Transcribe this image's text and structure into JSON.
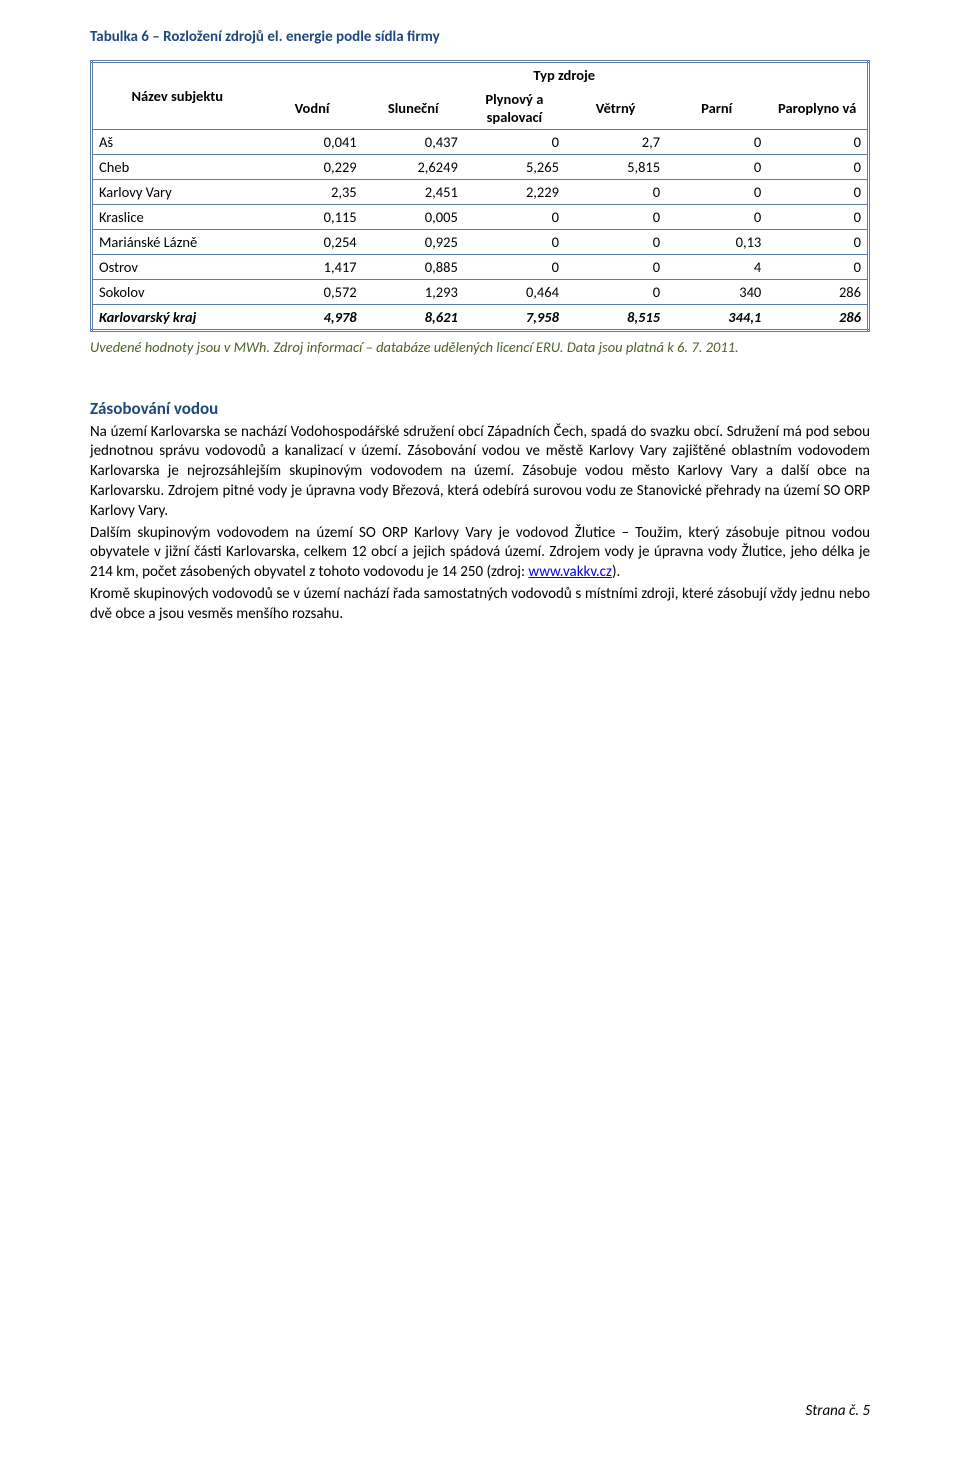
{
  "table": {
    "title": "Tabulka 6 – Rozložení zdrojů el. energie podle sídla firmy",
    "group_header": "Typ zdroje",
    "name_header": "Název subjektu",
    "col_headers": [
      "Vodní",
      "Sluneční",
      "Plynový a spalovací",
      "Větrný",
      "Parní",
      "Paroplyno vá"
    ],
    "rows": [
      {
        "name": "Aš",
        "v": [
          "0,041",
          "0,437",
          "0",
          "2,7",
          "0",
          "0"
        ]
      },
      {
        "name": "Cheb",
        "v": [
          "0,229",
          "2,6249",
          "5,265",
          "5,815",
          "0",
          "0"
        ]
      },
      {
        "name": "Karlovy Vary",
        "v": [
          "2,35",
          "2,451",
          "2,229",
          "0",
          "0",
          "0"
        ]
      },
      {
        "name": "Kraslice",
        "v": [
          "0,115",
          "0,005",
          "0",
          "0",
          "0",
          "0"
        ]
      },
      {
        "name": "Mariánské Lázně",
        "v": [
          "0,254",
          "0,925",
          "0",
          "0",
          "0,13",
          "0"
        ]
      },
      {
        "name": "Ostrov",
        "v": [
          "1,417",
          "0,885",
          "0",
          "0",
          "4",
          "0"
        ]
      },
      {
        "name": "Sokolov",
        "v": [
          "0,572",
          "1,293",
          "0,464",
          "0",
          "340",
          "286"
        ]
      }
    ],
    "total_row": {
      "name": "Karlovarský kraj",
      "v": [
        "4,978",
        "8,621",
        "7,958",
        "8,515",
        "344,1",
        "286"
      ]
    }
  },
  "caption": "Uvedené hodnoty jsou v MWh. Zdroj informací – databáze udělených licencí ERU. Data jsou platná k 6. 7. 2011.",
  "section_title": "Zásobování vodou",
  "para1a": "Na území Karlovarska se nachází Vodohospodářské sdružení obcí Západních Čech, spadá do svazku obcí. Sdružení má pod sebou jednotnou správu vodovodů a kanalizací v území. Zásobování vodou ve městě Karlovy Vary zajištěné oblastním vodovodem Karlovarska je nejrozsáhlejším skupinovým vodovodem na území. Zásobuje vodou město Karlovy Vary a další obce na Karlovarsku. Zdrojem pitné vody je úpravna vody Březová, která odebírá surovou vodu ze Stanovické přehrady na území SO ORP Karlovy Vary.",
  "para2a": "Dalším skupinovým vodovodem na území SO ORP Karlovy Vary je vodovod Žlutice – Toužim, který zásobuje pitnou vodou obyvatele v jižní části Karlovarska, celkem 12 obcí a jejich spádová území. Zdrojem vody je úpravna vody Žlutice, jeho délka je 214 km, počet zásobených obyvatel z tohoto vodovodu je 14 250 (zdroj: ",
  "link_text": "www.vakkv.cz",
  "para2b": ").",
  "para3": "Kromě skupinových vodovodů se v území nachází řada samostatných vodovodů s místními zdroji, které zásobují vždy jednu nebo dvě obce a jsou vesměs menšího rozsahu.",
  "footer": "Strana č. 5"
}
